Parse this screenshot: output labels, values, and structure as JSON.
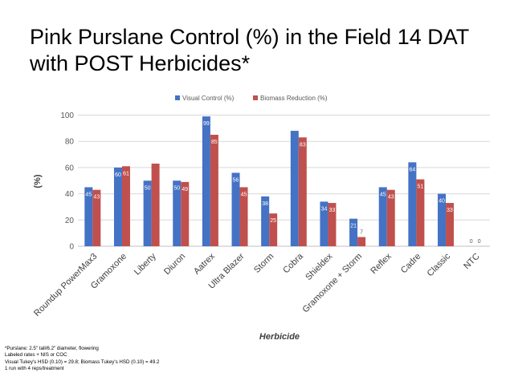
{
  "title": "Pink Purslane Control (%) in the Field 14 DAT with POST Herbicides*",
  "footnotes": [
    "*Purslane: 2.5\" tall/6.2\" diameter,  flowering",
    "Labeled rates + NIS  or COC",
    "Visual Tukey's HSD (0.10) = 29.8; Biomass Tukey's HSD  (0.10) =  49.2",
    "1 run with 4 reps/treatment"
  ],
  "colors": {
    "visual": "#4472C4",
    "biomass": "#C0504D"
  },
  "chart_data": {
    "type": "bar",
    "title": "",
    "xlabel": "Herbicide",
    "ylabel": "(%)",
    "ylim": [
      0,
      100
    ],
    "yticks": [
      0,
      20,
      40,
      60,
      80,
      100
    ],
    "grid": true,
    "legend_position": "top",
    "categories": [
      "Roundup PowerMax3",
      "Gramoxone",
      "Liberty",
      "Diuron",
      "Aatrex",
      "Ultra Blazer",
      "Storm",
      "Cobra",
      "Shieldex",
      "Gramoxone + Storm",
      "Reflex",
      "Cadre",
      "Classic",
      "NTC"
    ],
    "series": [
      {
        "name": "Visual Control (%)",
        "values": [
          45,
          60,
          50,
          50,
          99,
          56,
          38,
          88,
          34,
          21,
          45,
          64,
          40,
          0
        ]
      },
      {
        "name": "Biomass Reduction (%)",
        "values": [
          43,
          61,
          63,
          49,
          85,
          45,
          25,
          83,
          33,
          7,
          43,
          51,
          33,
          0
        ]
      }
    ],
    "data_labels": [
      [
        "45",
        "60",
        "50",
        "50",
        "99",
        "56",
        "38",
        "",
        "34",
        "21",
        "45",
        "64",
        "40",
        "0"
      ],
      [
        "43",
        "61",
        "",
        "49",
        "85",
        "45",
        "25",
        "83",
        "33",
        "7",
        "43",
        "51",
        "33",
        "0"
      ]
    ]
  }
}
